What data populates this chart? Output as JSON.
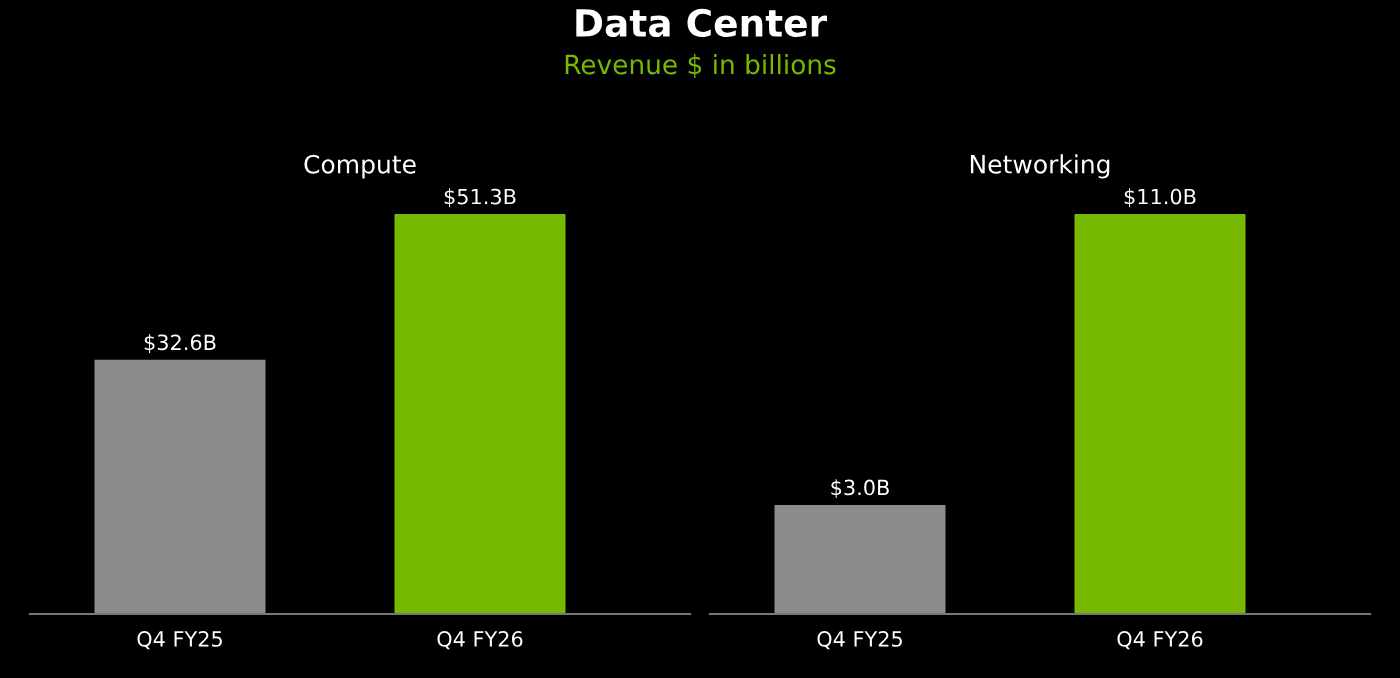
{
  "chart_data": [
    {
      "type": "bar",
      "title": "Compute",
      "annotations": [
        "Data Center",
        "Revenue $ in billions"
      ],
      "categories": [
        "Q4 FY25",
        "Q4 FY26"
      ],
      "values": [
        32.6,
        51.3
      ],
      "value_labels": [
        "$32.6B",
        "$51.3B"
      ],
      "colors": [
        "#8c8c8c",
        "#76b900"
      ],
      "tick_labels": "x"
    },
    {
      "type": "bar",
      "title": "Networking",
      "categories": [
        "Q4 FY25",
        "Q4 FY26"
      ],
      "values": [
        3.0,
        11.0
      ],
      "value_labels": [
        "$3.0B",
        "$11.0B"
      ],
      "colors": [
        "#8c8c8c",
        "#76b900"
      ],
      "tick_labels": "x"
    }
  ]
}
